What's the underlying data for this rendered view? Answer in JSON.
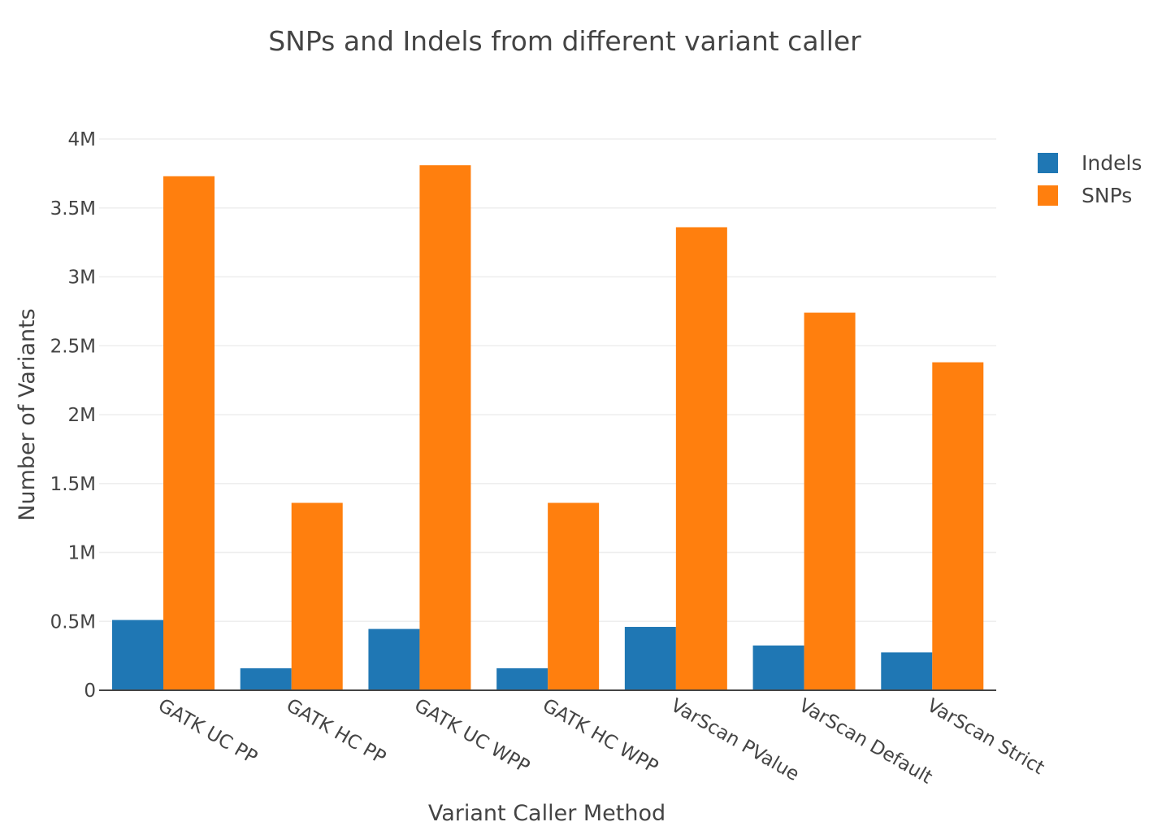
{
  "chart_data": {
    "type": "bar",
    "title": "SNPs and Indels from different variant caller",
    "xlabel": "Variant Caller Method",
    "ylabel": "Number of Variants",
    "categories": [
      "GATK UC PP",
      "GATK HC PP",
      "GATK UC WPP",
      "GATK HC WPP",
      "VarScan PValue",
      "VarScan Default",
      "VarScan Strict"
    ],
    "series": [
      {
        "name": "Indels",
        "color": "#1f77b4",
        "values": [
          510000,
          160000,
          445000,
          160000,
          460000,
          325000,
          275000
        ]
      },
      {
        "name": "SNPs",
        "color": "#ff7f0e",
        "values": [
          3730000,
          1360000,
          3810000,
          1360000,
          3360000,
          2740000,
          2380000
        ]
      }
    ],
    "ylim": [
      0,
      4000000
    ],
    "yticks": [
      0,
      500000,
      1000000,
      1500000,
      2000000,
      2500000,
      3000000,
      3500000,
      4000000
    ],
    "ytick_labels": [
      "0",
      "0.5M",
      "1M",
      "1.5M",
      "2M",
      "2.5M",
      "3M",
      "3.5M",
      "4M"
    ],
    "grid": true,
    "legend": "top-right"
  }
}
